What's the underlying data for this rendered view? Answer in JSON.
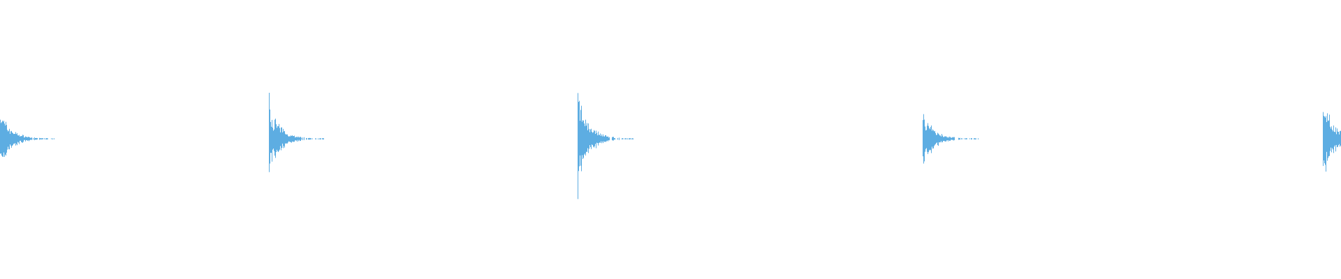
{
  "waveform": {
    "color": "#5dade2",
    "background": "#ffffff",
    "transients": [
      {
        "peak_amplitude": 0.26
      },
      {
        "peak_amplitude": 0.31
      },
      {
        "peak_amplitude": 0.41
      },
      {
        "peak_amplitude": 0.25
      },
      {
        "peak_amplitude": 0.36
      }
    ]
  }
}
